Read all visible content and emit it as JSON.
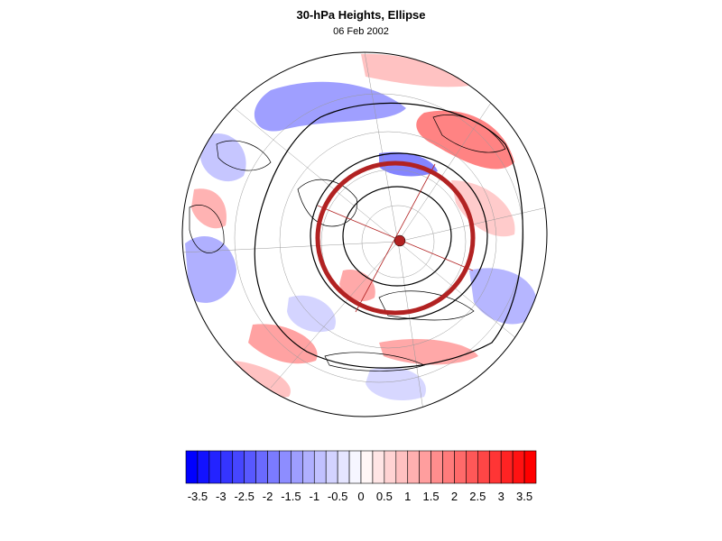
{
  "title": "30-hPa Heights, Ellipse",
  "date": "06 Feb 2002",
  "colorbar": {
    "levels": [
      -3.75,
      -3.5,
      -3.25,
      -3,
      -2.75,
      -2.5,
      -2.25,
      -2,
      -1.75,
      -1.5,
      -1.25,
      -1,
      -0.75,
      -0.5,
      -0.25,
      0,
      0.25,
      0.5,
      0.75,
      1,
      1.25,
      1.5,
      1.75,
      2,
      2.25,
      2.5,
      2.75,
      3,
      3.25,
      3.5,
      3.75
    ],
    "tick_labels": [
      "-3.5",
      "-3",
      "-2.5",
      "-2",
      "-1.5",
      "-1",
      "-0.5",
      "0",
      "0.5",
      "1",
      "1.5",
      "2",
      "2.5",
      "3",
      "3.5"
    ],
    "negative_color": "#0000ff",
    "positive_color": "#ff0000",
    "neutral_color": "#ffffff"
  },
  "map": {
    "projection": "orthographic-northern-hemisphere",
    "graticule": true,
    "ellipse_color": "#b22222",
    "contour_color": "#000000"
  }
}
